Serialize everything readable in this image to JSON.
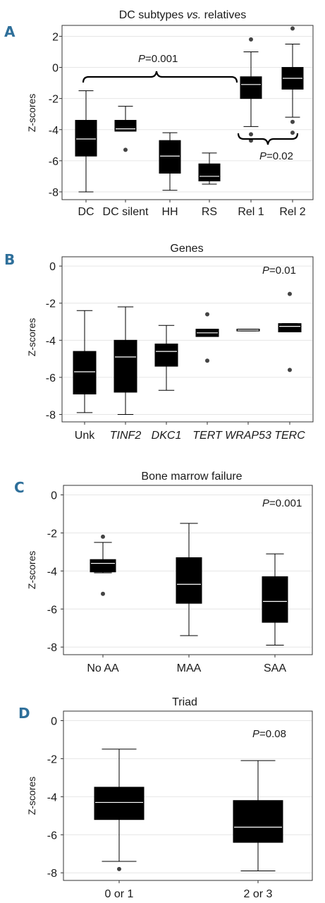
{
  "colors": {
    "box": "#000000",
    "median": "#ffffff",
    "grid": "#e6e6e6",
    "outlier": "#444444",
    "letter": "#2e6f9a"
  },
  "chart_data": [
    {
      "type": "boxplot",
      "panel_label": "A",
      "title": "DC subtypes vs. relatives",
      "title_main": "DC subtypes ",
      "title_italic": "vs.",
      "title_end": " relatives",
      "ylabel": "Z-scores",
      "ylim": [
        -8.5,
        2.7
      ],
      "yticks": [
        "2",
        "0",
        "-2",
        "-4",
        "-6",
        "-8"
      ],
      "ytick_values": [
        2,
        0,
        -2,
        -4,
        -6,
        -8
      ],
      "categories": [
        "DC",
        "DC silent",
        "HH",
        "RS",
        "Rel 1",
        "Rel 2"
      ],
      "italic_categories": [],
      "boxes": [
        {
          "q1": -5.7,
          "median": -4.6,
          "q3": -3.4,
          "lo": -8.0,
          "hi": -1.5,
          "outliers": []
        },
        {
          "q1": -4.1,
          "median": -3.95,
          "q3": -3.4,
          "lo": -4.1,
          "hi": -2.5,
          "outliers": [
            -5.3
          ]
        },
        {
          "q1": -6.8,
          "median": -5.7,
          "q3": -4.7,
          "lo": -7.9,
          "hi": -4.2,
          "outliers": []
        },
        {
          "q1": -7.3,
          "median": -7.0,
          "q3": -6.2,
          "lo": -7.5,
          "hi": -5.5,
          "outliers": []
        },
        {
          "q1": -2.0,
          "median": -1.1,
          "q3": -0.6,
          "lo": -3.8,
          "hi": 1.0,
          "outliers": [
            1.8,
            -4.3,
            -4.7
          ]
        },
        {
          "q1": -1.4,
          "median": -0.7,
          "q3": 0.0,
          "lo": -3.2,
          "hi": 1.5,
          "outliers": [
            2.5,
            -3.5,
            -4.2
          ]
        }
      ],
      "annotations": [
        {
          "text_italic": "P",
          "text": "=0.001"
        },
        {
          "text_italic": "P",
          "text": "=0.02"
        }
      ]
    },
    {
      "type": "boxplot",
      "panel_label": "B",
      "title": "Genes",
      "title_main": "Genes",
      "title_italic": "",
      "title_end": "",
      "ylabel": "Z-scores",
      "ylim": [
        -8.4,
        0.5
      ],
      "yticks": [
        "0",
        "-2",
        "-4",
        "-6",
        "-8"
      ],
      "ytick_values": [
        0,
        -2,
        -4,
        -6,
        -8
      ],
      "categories": [
        "Unk",
        "TINF2",
        "DKC1",
        "TERT",
        "WRAP53",
        "TERC"
      ],
      "italic_categories": [
        false,
        true,
        true,
        true,
        true,
        true
      ],
      "boxes": [
        {
          "q1": -6.9,
          "median": -5.7,
          "q3": -4.6,
          "lo": -7.9,
          "hi": -2.4,
          "outliers": []
        },
        {
          "q1": -6.8,
          "median": -4.9,
          "q3": -4.0,
          "lo": -8.0,
          "hi": -2.2,
          "outliers": []
        },
        {
          "q1": -5.4,
          "median": -4.6,
          "q3": -4.2,
          "lo": -6.7,
          "hi": -3.2,
          "outliers": []
        },
        {
          "q1": -3.8,
          "median": -3.6,
          "q3": -3.4,
          "lo": -3.8,
          "hi": -3.4,
          "outliers": [
            -2.6,
            -5.1
          ]
        },
        {
          "q1": -3.5,
          "median": -3.45,
          "q3": -3.4,
          "lo": -3.5,
          "hi": -3.4,
          "outliers": []
        },
        {
          "q1": -3.55,
          "median": -3.25,
          "q3": -3.1,
          "lo": -3.55,
          "hi": -3.1,
          "outliers": [
            -1.5,
            -5.6
          ]
        }
      ],
      "annotations": [
        {
          "text_italic": "P",
          "text": "=0.01"
        }
      ]
    },
    {
      "type": "boxplot",
      "panel_label": "C",
      "title": "Bone marrow failure",
      "title_main": "Bone marrow failure",
      "title_italic": "",
      "title_end": "",
      "ylabel": "Z-scores",
      "ylim": [
        -8.4,
        0.5
      ],
      "yticks": [
        "0",
        "-2",
        "-4",
        "-6",
        "-8"
      ],
      "ytick_values": [
        0,
        -2,
        -4,
        -6,
        -8
      ],
      "categories": [
        "No AA",
        "MAA",
        "SAA"
      ],
      "italic_categories": [],
      "boxes": [
        {
          "q1": -4.05,
          "median": -3.6,
          "q3": -3.4,
          "lo": -4.1,
          "hi": -2.5,
          "outliers": [
            -2.2,
            -5.2
          ]
        },
        {
          "q1": -5.7,
          "median": -4.7,
          "q3": -3.3,
          "lo": -7.4,
          "hi": -1.5,
          "outliers": []
        },
        {
          "q1": -6.7,
          "median": -5.6,
          "q3": -4.3,
          "lo": -7.9,
          "hi": -3.1,
          "outliers": []
        }
      ],
      "annotations": [
        {
          "text_italic": "P",
          "text": "=0.001"
        }
      ]
    },
    {
      "type": "boxplot",
      "panel_label": "D",
      "title": "Triad",
      "title_main": "Triad",
      "title_italic": "",
      "title_end": "",
      "ylabel": "Z-scores",
      "ylim": [
        -8.4,
        0.5
      ],
      "yticks": [
        "0",
        "-2",
        "-4",
        "-6",
        "-8"
      ],
      "ytick_values": [
        0,
        -2,
        -4,
        -6,
        -8
      ],
      "categories": [
        "0 or 1",
        "2 or 3"
      ],
      "italic_categories": [],
      "boxes": [
        {
          "q1": -5.2,
          "median": -4.3,
          "q3": -3.5,
          "lo": -7.4,
          "hi": -1.5,
          "outliers": [
            -7.8
          ]
        },
        {
          "q1": -6.4,
          "median": -5.6,
          "q3": -4.2,
          "lo": -7.9,
          "hi": -2.1,
          "outliers": []
        }
      ],
      "annotations": [
        {
          "text_italic": "P",
          "text": "=0.08"
        }
      ]
    }
  ]
}
